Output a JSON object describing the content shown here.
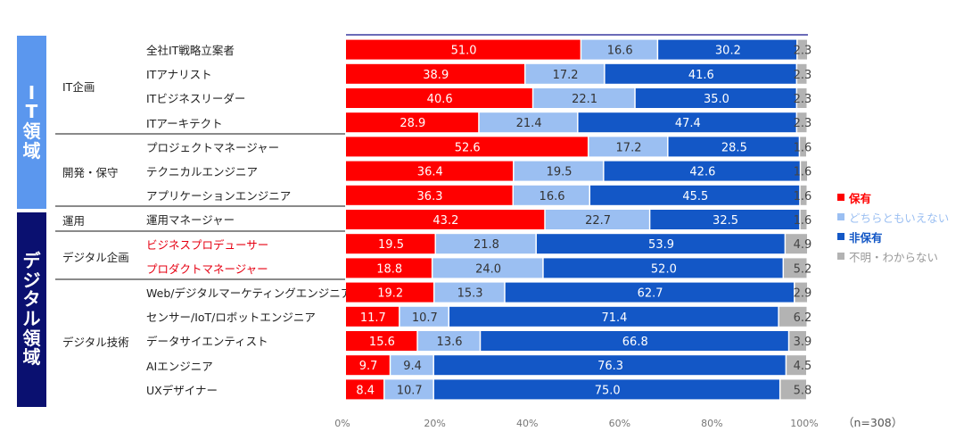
{
  "domains": [
    {
      "label_chars": [
        "I",
        "T",
        "領",
        "域"
      ],
      "color": "#5b97ee"
    },
    {
      "label_chars": [
        "デ",
        "ジ",
        "タ",
        "ル",
        "領",
        "域"
      ],
      "color": "#0a1070"
    }
  ],
  "groups": [
    {
      "label": "IT企画"
    },
    {
      "label": "開発・保守"
    },
    {
      "label": "運用"
    },
    {
      "label": "デジタル企画"
    },
    {
      "label": "デジタル技術"
    }
  ],
  "colors": {
    "hold": "#ff0000",
    "neutral": "#9bbff2",
    "not_hold": "#1357c6",
    "unknown": "#b3b3b3"
  },
  "legend": [
    {
      "label": "保有",
      "color": "#ff0000"
    },
    {
      "label": "どちらともいえない",
      "color": "#9bbff2"
    },
    {
      "label": "非保有",
      "color": "#1357c6"
    },
    {
      "label": "不明・わからない",
      "color": "#b3b3b3"
    }
  ],
  "sample_note": "（n=308）",
  "chart_data": {
    "type": "bar",
    "orientation": "horizontal",
    "stacked": true,
    "percent": true,
    "xlim": [
      0,
      100
    ],
    "xticks": [
      "0%",
      "20%",
      "40%",
      "60%",
      "80%",
      "100%"
    ],
    "grid": false,
    "legend_position": "right",
    "categories": [
      "全社IT戦略立案者",
      "ITアナリスト",
      "ITビジネスリーダー",
      "ITアーキテクト",
      "プロジェクトマネージャー",
      "テクニカルエンジニア",
      "アプリケーションエンジニア",
      "運用マネージャー",
      "ビジネスプロデューサー",
      "プロダクトマネージャー",
      "Web/デジタルマーケティングエンジニア",
      "センサー/IoT/ロボットエンジニア",
      "データサイエンティスト",
      "AIエンジニア",
      "UXデザイナー"
    ],
    "highlighted_categories": [
      "ビジネスプロデューサー",
      "プロダクトマネージャー"
    ],
    "series": [
      {
        "name": "保有",
        "values": [
          51.0,
          38.9,
          40.6,
          28.9,
          52.6,
          36.4,
          36.3,
          43.2,
          19.5,
          18.8,
          19.2,
          11.7,
          15.6,
          9.7,
          8.4
        ]
      },
      {
        "name": "どちらともいえない",
        "values": [
          16.6,
          17.2,
          22.1,
          21.4,
          17.2,
          19.5,
          16.6,
          22.7,
          21.8,
          24.0,
          15.3,
          10.7,
          13.6,
          9.4,
          10.7
        ]
      },
      {
        "name": "非保有",
        "values": [
          30.2,
          41.6,
          35.0,
          47.4,
          28.5,
          42.6,
          45.5,
          32.5,
          53.9,
          52.0,
          62.7,
          71.4,
          66.8,
          76.3,
          75.0
        ]
      },
      {
        "name": "不明・わからない",
        "values": [
          2.3,
          2.3,
          2.3,
          2.3,
          1.6,
          1.6,
          1.6,
          1.6,
          4.9,
          5.2,
          2.9,
          6.2,
          3.9,
          4.5,
          5.8
        ]
      }
    ],
    "row_groups": [
      0,
      0,
      0,
      0,
      1,
      1,
      1,
      2,
      3,
      3,
      4,
      4,
      4,
      4,
      4
    ]
  }
}
